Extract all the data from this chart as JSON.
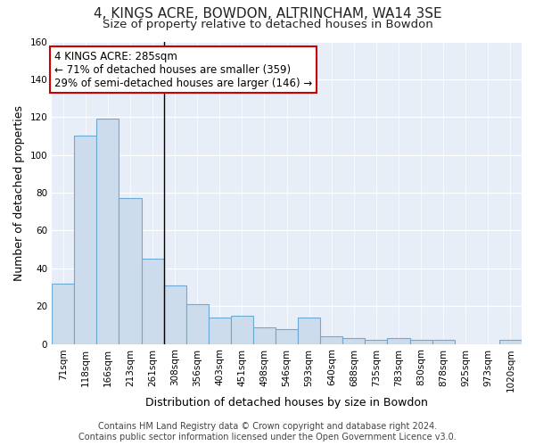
{
  "title": "4, KINGS ACRE, BOWDON, ALTRINCHAM, WA14 3SE",
  "subtitle": "Size of property relative to detached houses in Bowdon",
  "xlabel": "Distribution of detached houses by size in Bowdon",
  "ylabel": "Number of detached properties",
  "bar_color": "#ccdcec",
  "bar_edge_color": "#6aaad4",
  "background_color": "#e8eef8",
  "categories": [
    "71sqm",
    "118sqm",
    "166sqm",
    "213sqm",
    "261sqm",
    "308sqm",
    "356sqm",
    "403sqm",
    "451sqm",
    "498sqm",
    "546sqm",
    "593sqm",
    "640sqm",
    "688sqm",
    "735sqm",
    "783sqm",
    "830sqm",
    "878sqm",
    "925sqm",
    "973sqm",
    "1020sqm"
  ],
  "bar_heights": [
    32,
    110,
    119,
    77,
    45,
    31,
    21,
    14,
    15,
    9,
    8,
    14,
    4,
    3,
    2,
    3,
    2,
    2,
    0,
    0,
    2
  ],
  "ylim": [
    0,
    160
  ],
  "yticks": [
    0,
    20,
    40,
    60,
    80,
    100,
    120,
    140,
    160
  ],
  "annotation_text": "4 KINGS ACRE: 285sqm\n← 71% of detached houses are smaller (359)\n29% of semi-detached houses are larger (146) →",
  "vline_index": 4.52,
  "annotation_box_color": "#ffffff",
  "annotation_border_color": "#cc0000",
  "footer_line1": "Contains HM Land Registry data © Crown copyright and database right 2024.",
  "footer_line2": "Contains public sector information licensed under the Open Government Licence v3.0.",
  "title_fontsize": 11,
  "subtitle_fontsize": 9.5,
  "axis_label_fontsize": 9,
  "tick_fontsize": 7.5,
  "annotation_fontsize": 8.5,
  "footer_fontsize": 7
}
